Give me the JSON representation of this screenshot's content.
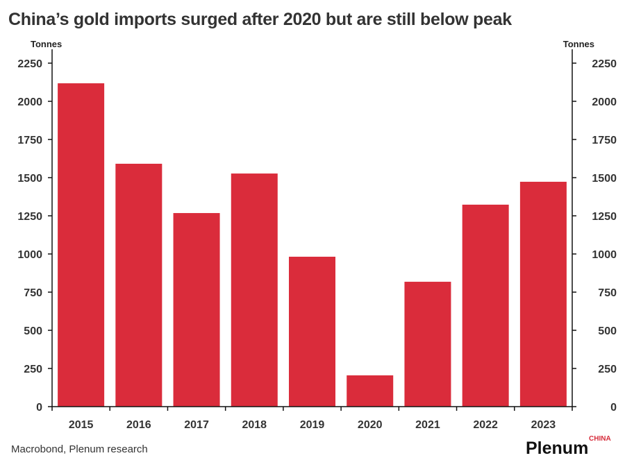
{
  "chart_data": {
    "type": "bar",
    "title": "China’s gold imports surged after 2020 but are still below peak",
    "ylabel_left": "Tonnes",
    "ylabel_right": "Tonnes",
    "categories": [
      "2015",
      "2016",
      "2017",
      "2018",
      "2019",
      "2020",
      "2021",
      "2022",
      "2023"
    ],
    "values": [
      2118,
      1591,
      1268,
      1527,
      982,
      205,
      818,
      1323,
      1473
    ],
    "ylim": [
      0,
      2250
    ],
    "yticks": [
      0,
      250,
      500,
      750,
      1000,
      1250,
      1500,
      1750,
      2000,
      2250
    ],
    "grid": false,
    "bar_color": "#da2c3b",
    "source": "Macrobond, Plenum research"
  },
  "logo": {
    "name": "Plenum",
    "sub": "CHINA"
  }
}
